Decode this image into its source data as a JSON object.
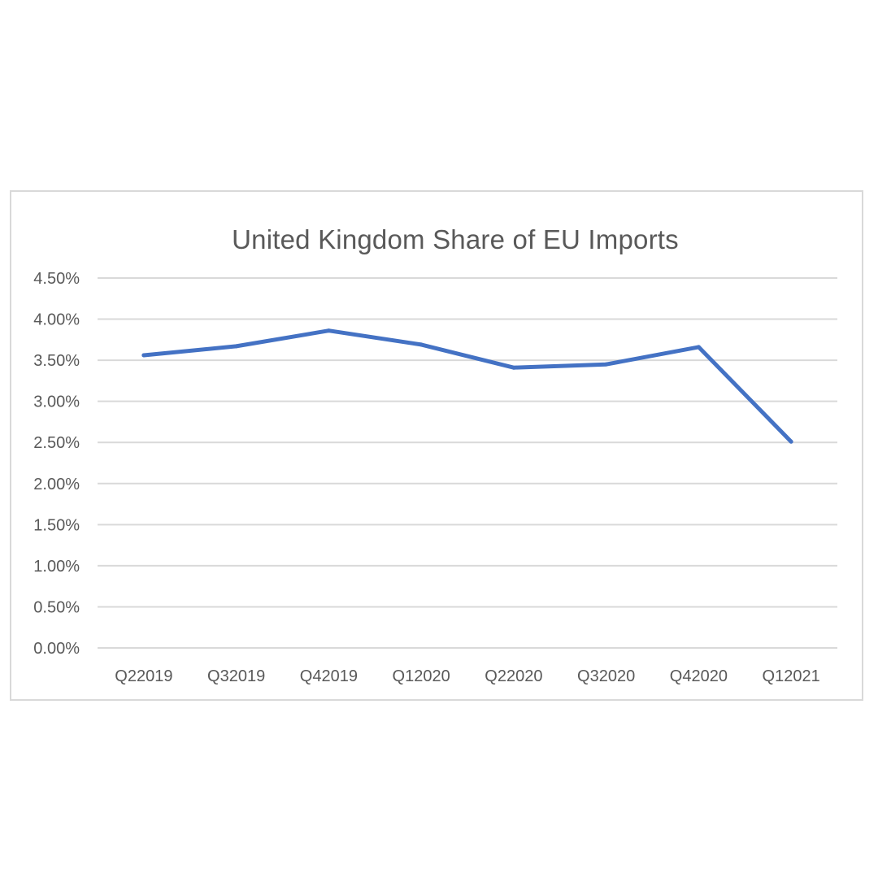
{
  "chart_data": {
    "type": "line",
    "title": "United Kingdom Share of EU Imports",
    "xlabel": "",
    "ylabel": "",
    "categories": [
      "Q22019",
      "Q32019",
      "Q42019",
      "Q12020",
      "Q22020",
      "Q32020",
      "Q42020",
      "Q12021"
    ],
    "series": [
      {
        "values": [
          3.56,
          3.67,
          3.86,
          3.69,
          3.41,
          3.45,
          3.66,
          2.51
        ],
        "color": "#4472c4"
      }
    ],
    "y_ticks": [
      "0.00%",
      "0.50%",
      "1.00%",
      "1.50%",
      "2.00%",
      "2.50%",
      "3.00%",
      "3.50%",
      "4.00%",
      "4.50%"
    ],
    "ylim": [
      0,
      4.5
    ],
    "grid": true,
    "legend": "none"
  }
}
